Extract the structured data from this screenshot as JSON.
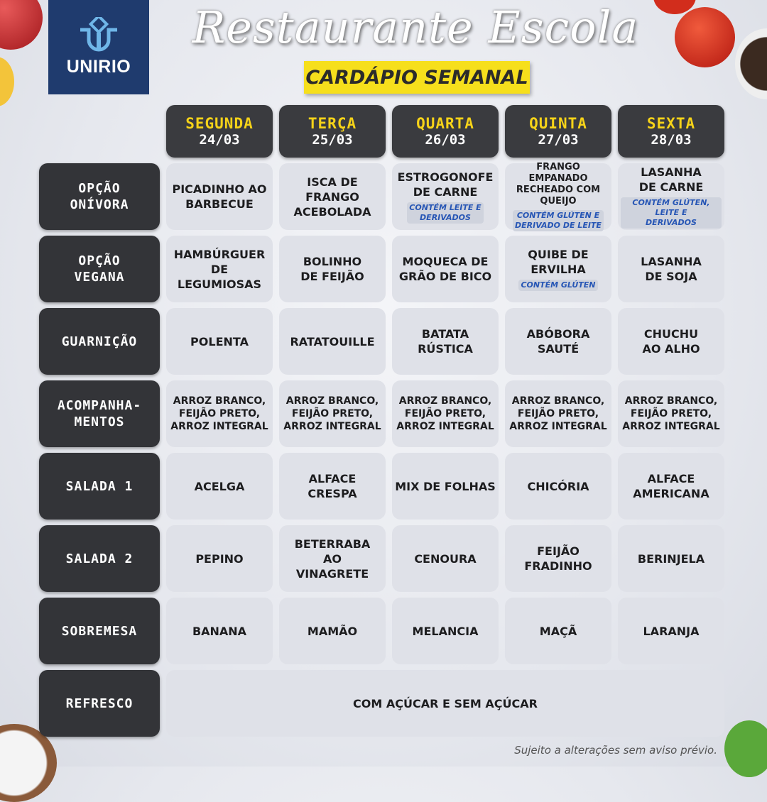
{
  "logo": {
    "text": "UNIRIO"
  },
  "header": {
    "title": "Restaurante Escola",
    "subtitle": "CARDÁPIO SEMANAL"
  },
  "days": [
    {
      "name": "SEGUNDA",
      "date": "24/03"
    },
    {
      "name": "TERÇA",
      "date": "25/03"
    },
    {
      "name": "QUARTA",
      "date": "26/03"
    },
    {
      "name": "QUINTA",
      "date": "27/03"
    },
    {
      "name": "SEXTA",
      "date": "28/03"
    }
  ],
  "rows": [
    {
      "label": "OPÇÃO\nONÍVORA",
      "cells": [
        {
          "text": "PICADINHO AO\nBARBECUE"
        },
        {
          "text": "ISCA DE FRANGO\nACEBOLADA"
        },
        {
          "text": "ESTROGONOFE\nDE CARNE",
          "note": "CONTÉM LEITE E\nDERIVADOS"
        },
        {
          "text": "FRANGO EMPANADO\nRECHEADO COM\nQUEIJO",
          "note": "CONTÉM GLÚTEN E\nDERIVADO DE LEITE"
        },
        {
          "text": "LASANHA\nDE CARNE",
          "note": "CONTÉM GLÚTEN, LEITE E\nDERIVADOS"
        }
      ]
    },
    {
      "label": "OPÇÃO\nVEGANA",
      "cells": [
        {
          "text": "HAMBÚRGUER\nDE LEGUMIOSAS"
        },
        {
          "text": "BOLINHO\nDE FEIJÃO"
        },
        {
          "text": "MOQUECA DE\nGRÃO DE BICO"
        },
        {
          "text": "QUIBE DE\nERVILHA",
          "note": "CONTÉM GLÚTEN"
        },
        {
          "text": "LASANHA\nDE SOJA"
        }
      ]
    },
    {
      "label": "GUARNIÇÃO",
      "cells": [
        {
          "text": "POLENTA"
        },
        {
          "text": "RATATOUILLE"
        },
        {
          "text": "BATATA\nRÚSTICA"
        },
        {
          "text": "ABÓBORA\nSAUTÉ"
        },
        {
          "text": "CHUCHU\nAO ALHO"
        }
      ]
    },
    {
      "label": "ACOMPANHA-\nMENTOS",
      "cells": [
        {
          "text": "ARROZ BRANCO,\nFEIJÃO PRETO,\nARROZ INTEGRAL"
        },
        {
          "text": "ARROZ BRANCO,\nFEIJÃO PRETO,\nARROZ INTEGRAL"
        },
        {
          "text": "ARROZ BRANCO,\nFEIJÃO PRETO,\nARROZ INTEGRAL"
        },
        {
          "text": "ARROZ BRANCO,\nFEIJÃO PRETO,\nARROZ INTEGRAL"
        },
        {
          "text": "ARROZ BRANCO,\nFEIJÃO PRETO,\nARROZ INTEGRAL"
        }
      ]
    },
    {
      "label": "SALADA 1",
      "cells": [
        {
          "text": "ACELGA"
        },
        {
          "text": "ALFACE\nCRESPA"
        },
        {
          "text": "MIX DE FOLHAS"
        },
        {
          "text": "CHICÓRIA"
        },
        {
          "text": "ALFACE\nAMERICANA"
        }
      ]
    },
    {
      "label": "SALADA 2",
      "cells": [
        {
          "text": "PEPINO"
        },
        {
          "text": "BETERRABA\nAO\nVINAGRETE"
        },
        {
          "text": "CENOURA"
        },
        {
          "text": "FEIJÃO\nFRADINHO"
        },
        {
          "text": "BERINJELA"
        }
      ]
    },
    {
      "label": "SOBREMESA",
      "cells": [
        {
          "text": "BANANA"
        },
        {
          "text": "MAMÃO"
        },
        {
          "text": "MELANCIA"
        },
        {
          "text": "MAÇÃ"
        },
        {
          "text": "LARANJA"
        }
      ]
    }
  ],
  "refresco": {
    "label": "REFRESCO",
    "text": "COM AÇÚCAR E SEM AÇÚCAR"
  },
  "footer": "Sujeito a alterações sem aviso prévio.",
  "colors": {
    "logo_bg": "#1f3b6e",
    "banner": "#f6df1c",
    "day_name": "#f6d319",
    "dark_tile": "#333438",
    "note": "#2756b5"
  }
}
